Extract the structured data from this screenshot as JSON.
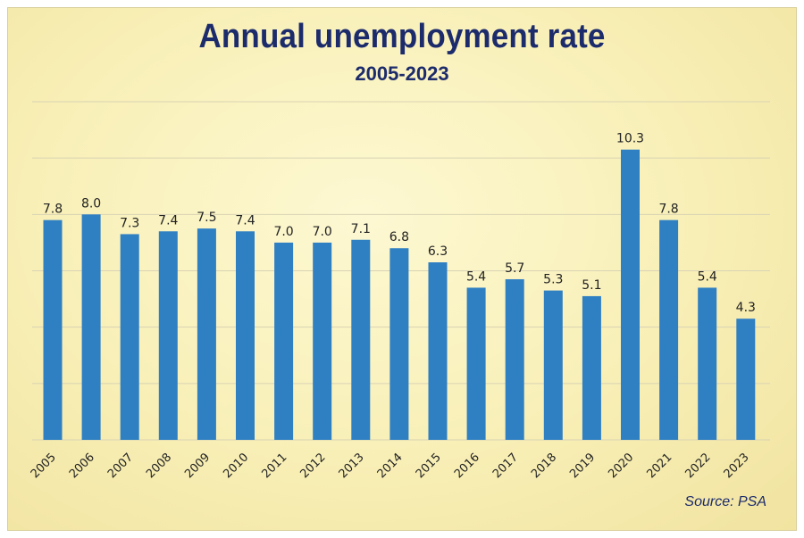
{
  "chart_data": {
    "type": "bar",
    "title": "Annual unemployment rate",
    "subtitle": "2005-2023",
    "categories": [
      "2005",
      "2006",
      "2007",
      "2008",
      "2009",
      "2010",
      "2011",
      "2012",
      "2013",
      "2014",
      "2015",
      "2016",
      "2017",
      "2018",
      "2019",
      "2020",
      "2021",
      "2022",
      "2023"
    ],
    "values": [
      7.8,
      8.0,
      7.3,
      7.4,
      7.5,
      7.4,
      7.0,
      7.0,
      7.1,
      6.8,
      6.3,
      5.4,
      5.7,
      5.3,
      5.1,
      10.3,
      7.8,
      5.4,
      4.3
    ],
    "value_labels": [
      "7.8",
      "8.0",
      "7.3",
      "7.4",
      "7.5",
      "7.4",
      "7.0",
      "7.0",
      "7.1",
      "6.8",
      "6.3",
      "5.4",
      "5.7",
      "5.3",
      "5.1",
      "10.3",
      "7.8",
      "5.4",
      "4.3"
    ],
    "ylim": [
      0,
      12
    ],
    "grid": true,
    "source": "Source: PSA",
    "colors": {
      "bar": "#2f7fc3",
      "title": "#1c2b6b",
      "background": "#f8efb6"
    }
  }
}
